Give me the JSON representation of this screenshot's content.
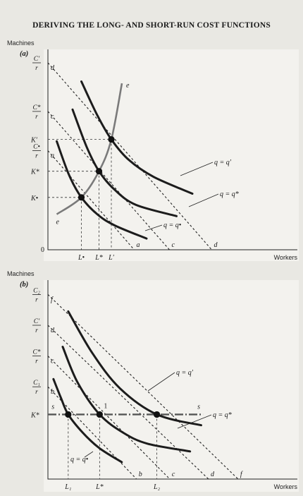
{
  "title": "DERIVING THE LONG- AND SHORT-RUN COST FUNCTIONS",
  "chart_data": [
    {
      "type": "line",
      "panel_label": "(a)",
      "xlabel": "Workers",
      "ylabel": "Machines",
      "origin_label": "0",
      "y_ticks": [
        {
          "label_num": "C′",
          "label_den": "r",
          "y": 10.0
        },
        {
          "label_num": "C*",
          "label_den": "r",
          "y": 7.4
        },
        {
          "label": "K′",
          "y": 5.9
        },
        {
          "label_num": "C•",
          "label_den": "r",
          "y": 5.3
        },
        {
          "label": "K*",
          "y": 4.2
        },
        {
          "label": "K•",
          "y": 2.8
        }
      ],
      "x_ticks": [
        {
          "label": "L•",
          "x": 1.9
        },
        {
          "label": "L*",
          "x": 2.9
        },
        {
          "label": "L′",
          "x": 3.6
        }
      ],
      "isocost_lines": [
        {
          "name": "a",
          "x": [
            0,
            4.9
          ],
          "y": [
            5.3,
            0
          ]
        },
        {
          "name": "c",
          "x": [
            0,
            6.9
          ],
          "y": [
            7.4,
            0
          ]
        },
        {
          "name": "d",
          "x": [
            0,
            9.3
          ],
          "y": [
            10.0,
            0
          ]
        }
      ],
      "series": [
        {
          "name": "q = q•",
          "x": [
            0.5,
            1.2,
            1.9,
            2.8,
            3.8,
            5.6
          ],
          "y": [
            5.8,
            4.0,
            2.8,
            1.9,
            1.3,
            0.6
          ]
        },
        {
          "name": "q = q*",
          "x": [
            1.4,
            2.2,
            2.9,
            3.8,
            5.0,
            7.3
          ],
          "y": [
            7.5,
            5.5,
            4.2,
            3.2,
            2.4,
            1.8
          ]
        },
        {
          "name": "q = q′",
          "x": [
            1.9,
            2.8,
            3.6,
            4.6,
            6.0,
            8.2
          ],
          "y": [
            9.0,
            7.2,
            5.9,
            4.8,
            3.9,
            3.0
          ]
        }
      ],
      "expansion_path": {
        "name": "e",
        "x": [
          0.5,
          1.9,
          2.9,
          3.6,
          4.2
        ],
        "y": [
          1.9,
          2.8,
          4.2,
          5.9,
          8.9
        ]
      },
      "tangency_points": [
        {
          "x": 1.9,
          "y": 2.8
        },
        {
          "x": 2.9,
          "y": 4.2
        },
        {
          "x": 3.6,
          "y": 5.9
        }
      ],
      "xlim": [
        0,
        12
      ],
      "ylim": [
        0,
        11
      ]
    },
    {
      "type": "line",
      "panel_label": "(b)",
      "xlabel": "Workers",
      "ylabel": "Machines",
      "y_ticks": [
        {
          "label_num": "C₂",
          "label_den": "r",
          "y": 12.0
        },
        {
          "label_num": "C′",
          "label_den": "r",
          "y": 10.0
        },
        {
          "label_num": "C*",
          "label_den": "r",
          "y": 8.0
        },
        {
          "label_num": "C₁",
          "label_den": "r",
          "y": 6.0
        },
        {
          "label": "K*",
          "y": 4.2
        }
      ],
      "x_ticks": [
        {
          "label": "L₁",
          "x": 1.1
        },
        {
          "label": "L*",
          "x": 2.8
        },
        {
          "label": "L₂",
          "x": 5.9
        }
      ],
      "isocost_lines": [
        {
          "name": "b",
          "x": [
            0,
            4.8
          ],
          "y": [
            6.0,
            0
          ]
        },
        {
          "name": "c",
          "x": [
            0,
            6.6
          ],
          "y": [
            8.0,
            0
          ]
        },
        {
          "name": "d",
          "x": [
            0,
            8.7
          ],
          "y": [
            10.0,
            0
          ]
        },
        {
          "name": "f",
          "x": [
            0,
            10.3
          ],
          "y": [
            12.0,
            0
          ]
        }
      ],
      "short_run_line": {
        "name": "s",
        "y": 4.2,
        "x": [
          0,
          8.4
        ]
      },
      "series": [
        {
          "name": "q = q•",
          "x": [
            0.3,
            0.7,
            1.1,
            1.9,
            2.8,
            4.0
          ],
          "y": [
            6.5,
            5.3,
            4.2,
            3.0,
            2.0,
            1.1
          ]
        },
        {
          "name": "q = q*",
          "x": [
            0.8,
            1.6,
            2.8,
            4.1,
            5.4,
            7.7
          ],
          "y": [
            8.6,
            6.3,
            4.2,
            3.0,
            2.3,
            1.8
          ]
        },
        {
          "name": "q = q′",
          "x": [
            1.1,
            2.4,
            3.9,
            5.9,
            8.3
          ],
          "y": [
            10.9,
            8.2,
            5.9,
            4.2,
            3.5
          ]
        }
      ],
      "tangency_points": [
        {
          "x": 1.1,
          "y": 4.2
        },
        {
          "x": 2.8,
          "y": 4.2,
          "label": "1"
        },
        {
          "x": 5.9,
          "y": 4.2
        }
      ],
      "xlim": [
        0,
        12
      ],
      "ylim": [
        0,
        13
      ]
    }
  ]
}
